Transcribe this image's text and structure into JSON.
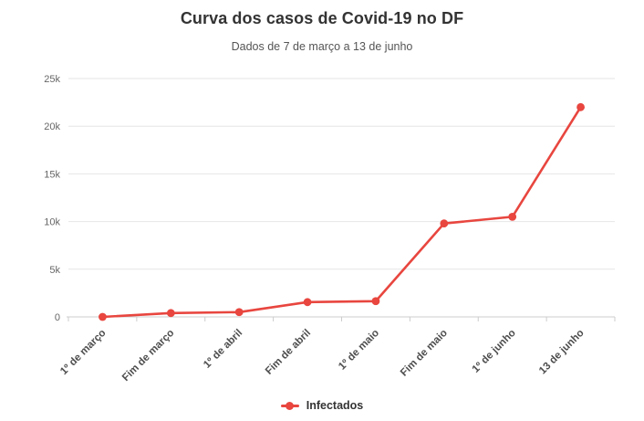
{
  "header": {
    "title": "Curva dos casos de Covid-19 no DF",
    "subtitle": "Dados de 7 de março a 13 de junho"
  },
  "legend": {
    "items": [
      {
        "label": "Infectados",
        "marker": "dot-line-marker",
        "color": "#e8463f"
      }
    ],
    "position": "bottom-center"
  },
  "chart_data": {
    "type": "line",
    "title": "Curva dos casos de Covid-19 no DF",
    "subtitle": "Dados de 7 de março a 13 de junho",
    "categories": [
      "1º de março",
      "Fim de março",
      "1º de abril",
      "Fim de abril",
      "1º de maio",
      "Fim de maio",
      "1º de junho",
      "13 de junho"
    ],
    "series": [
      {
        "name": "Infectados",
        "color": "#e8463f",
        "values": [
          1,
          400,
          500,
          1550,
          1650,
          9800,
          10500,
          22000
        ]
      }
    ],
    "xlabel": "",
    "ylabel": "",
    "ylim": [
      0,
      25000
    ],
    "yticks": [
      {
        "value": 0,
        "label": "0"
      },
      {
        "value": 5000,
        "label": "5k"
      },
      {
        "value": 10000,
        "label": "10k"
      },
      {
        "value": 15000,
        "label": "15k"
      },
      {
        "value": 20000,
        "label": "20k"
      },
      {
        "value": 25000,
        "label": "25k"
      }
    ],
    "grid": true,
    "legend_position": "bottom",
    "x_label_rotation_deg": -45,
    "colors": {
      "background": "#ffffff",
      "grid": "#e6e6e6",
      "axis": "#cccccc",
      "x_labels": "#4d4d4d",
      "y_labels": "#666666",
      "title": "#333333",
      "subtitle": "#555555"
    }
  }
}
